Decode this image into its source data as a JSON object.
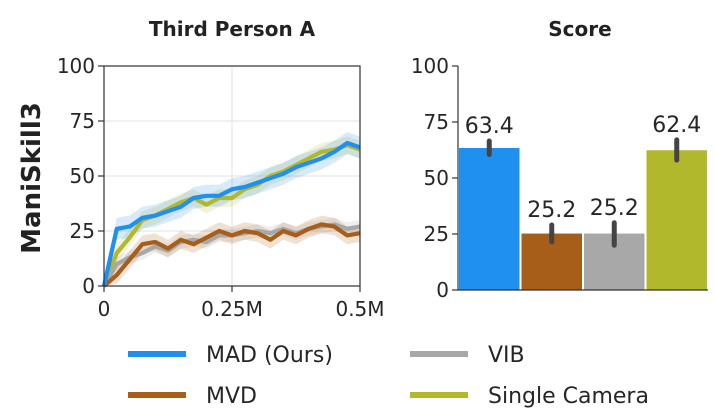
{
  "row_label": "ManiSkill3",
  "colors": {
    "MAD (Ours)": "#1f8ff0",
    "MVD": "#a65e18",
    "VIB": "#a8a8a8",
    "Single Camera": "#b1b82c"
  },
  "chart_data": [
    {
      "type": "line",
      "title": "Third Person A",
      "xlabel": "",
      "ylabel": "",
      "xlim": [
        0,
        0.5
      ],
      "ylim": [
        0,
        100
      ],
      "xticks": [
        0,
        0.25,
        0.5
      ],
      "xtick_labels": [
        "0",
        "0.25M",
        "0.5M"
      ],
      "yticks": [
        0,
        25,
        50,
        75,
        100
      ],
      "ytick_labels": [
        "0",
        "25",
        "50",
        "75",
        "100"
      ],
      "grid": true,
      "x": [
        0,
        0.025,
        0.05,
        0.075,
        0.1,
        0.125,
        0.15,
        0.175,
        0.2,
        0.225,
        0.25,
        0.275,
        0.3,
        0.325,
        0.35,
        0.375,
        0.4,
        0.425,
        0.45,
        0.475,
        0.5
      ],
      "series": [
        {
          "name": "Single Camera",
          "values": [
            0,
            15,
            22,
            30,
            32,
            35,
            38,
            40,
            37,
            40,
            40,
            44,
            46,
            50,
            52,
            55,
            58,
            61,
            62,
            64,
            62
          ],
          "band": 4
        },
        {
          "name": "VIB",
          "values": [
            0,
            10,
            13,
            15,
            18,
            16,
            20,
            21,
            20,
            23,
            23,
            24,
            25,
            24,
            26,
            24,
            26,
            27,
            28,
            26,
            27
          ],
          "band": 3
        },
        {
          "name": "MVD",
          "values": [
            0,
            5,
            12,
            19,
            20,
            17,
            21,
            19,
            22,
            25,
            23,
            25,
            24,
            21,
            25,
            23,
            26,
            28,
            27,
            23,
            24
          ],
          "band": 4
        },
        {
          "name": "MAD (Ours)",
          "values": [
            0,
            26,
            27,
            31,
            32,
            34,
            36,
            40,
            41,
            41,
            44,
            45,
            47,
            49,
            51,
            54,
            56,
            58,
            61,
            65,
            63
          ],
          "band": 5
        }
      ]
    },
    {
      "type": "bar",
      "title": "Score",
      "xlabel": "",
      "ylabel": "",
      "ylim": [
        0,
        100
      ],
      "yticks": [
        0,
        25,
        50,
        75,
        100
      ],
      "ytick_labels": [
        "0",
        "25",
        "50",
        "75",
        "100"
      ],
      "categories": [
        "MAD (Ours)",
        "MVD",
        "VIB",
        "Single Camera"
      ],
      "values": [
        63.4,
        25.2,
        25.2,
        62.4
      ],
      "value_labels": [
        "63.4",
        "25.2",
        "25.2",
        "62.4"
      ],
      "errors": [
        [
          60.5,
          66.5
        ],
        [
          21.5,
          29.0
        ],
        [
          20.0,
          30.0
        ],
        [
          58.0,
          67.0
        ]
      ]
    }
  ],
  "legend": {
    "entries": [
      "MAD (Ours)",
      "MVD",
      "VIB",
      "Single Camera"
    ]
  }
}
